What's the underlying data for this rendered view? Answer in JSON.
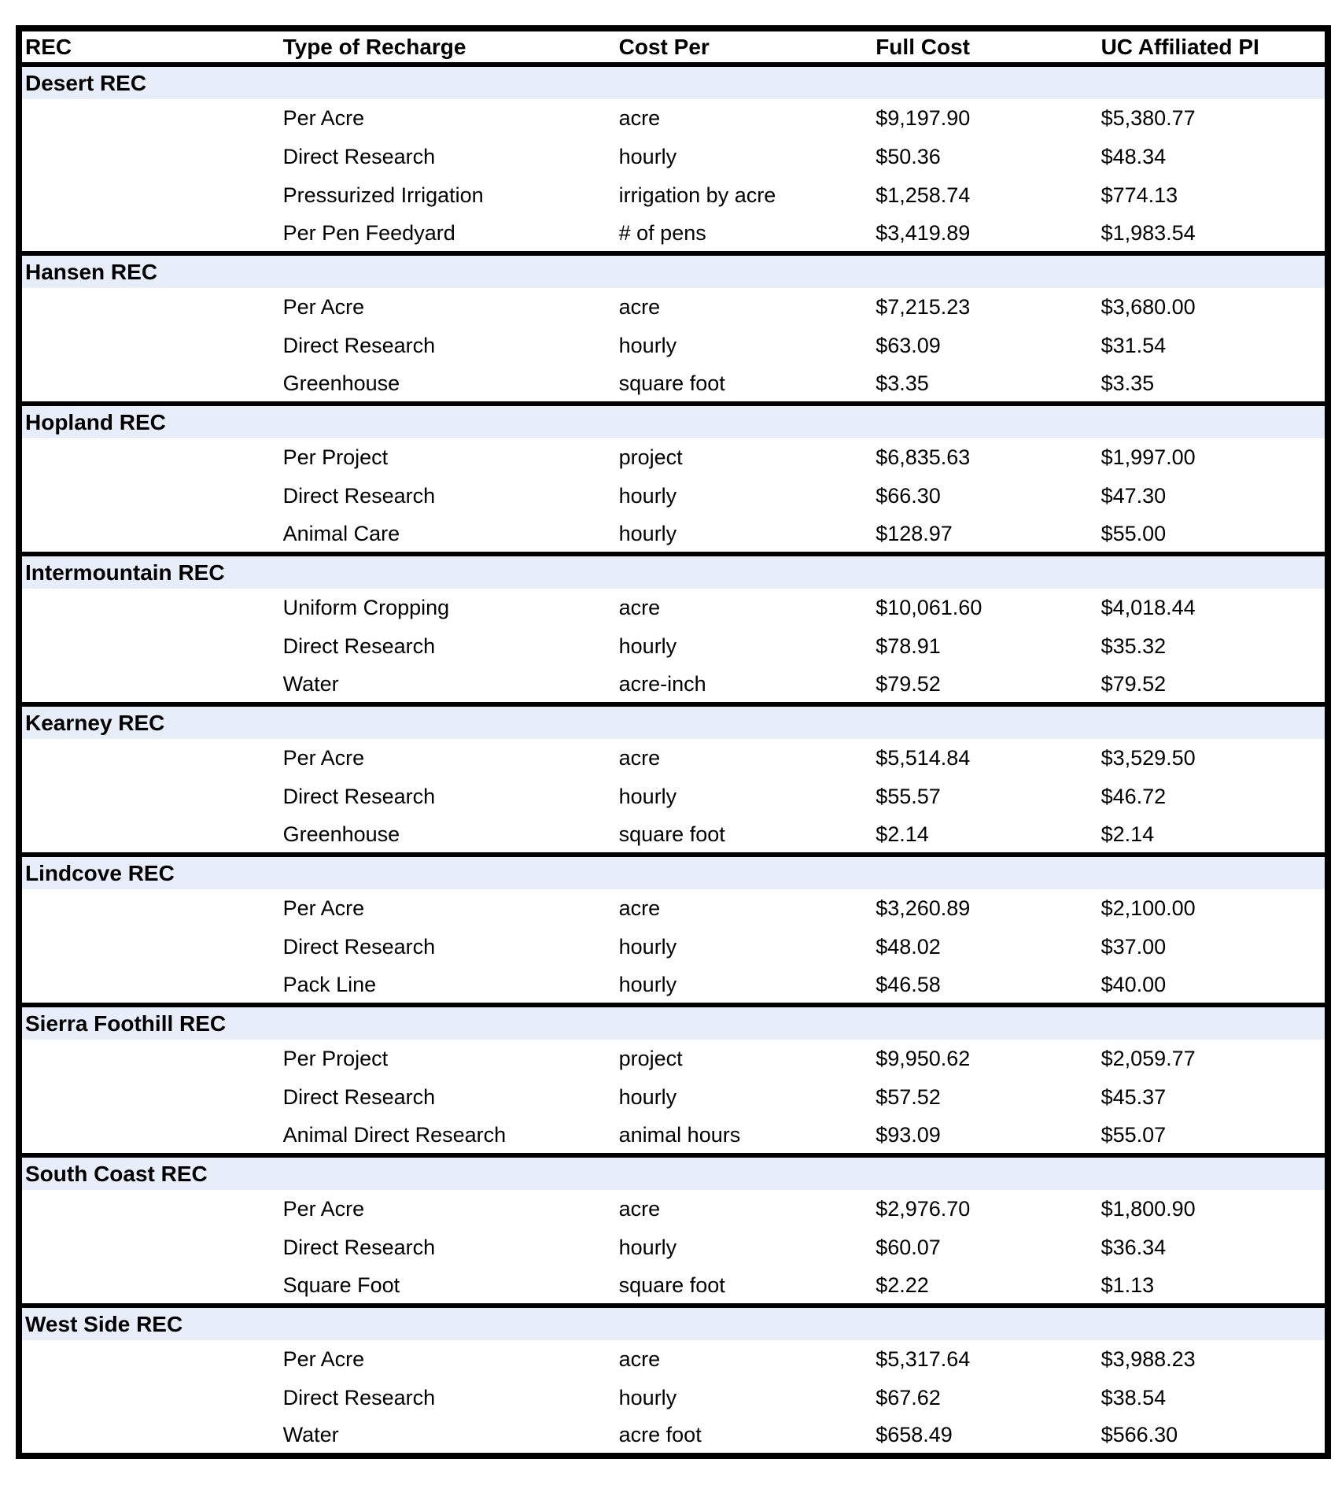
{
  "colors": {
    "section_row_bg": "#e7eefa",
    "border": "#000000",
    "text": "#000000",
    "page_bg": "#ffffff"
  },
  "table": {
    "columns": [
      "REC",
      "Type of Recharge",
      "Cost Per",
      "Full Cost",
      "UC Affiliated PI"
    ],
    "sections": [
      {
        "name": "Desert REC",
        "rows": [
          {
            "type": "Per Acre",
            "cost_per": "acre",
            "full_cost": "$9,197.90",
            "uc_pi": "$5,380.77"
          },
          {
            "type": "Direct Research",
            "cost_per": "hourly",
            "full_cost": "$50.36",
            "uc_pi": "$48.34"
          },
          {
            "type": "Pressurized Irrigation",
            "cost_per": "irrigation by acre",
            "full_cost": "$1,258.74",
            "uc_pi": "$774.13"
          },
          {
            "type": "Per Pen Feedyard",
            "cost_per": "# of pens",
            "full_cost": "$3,419.89",
            "uc_pi": "$1,983.54"
          }
        ]
      },
      {
        "name": "Hansen REC",
        "rows": [
          {
            "type": "Per Acre",
            "cost_per": "acre",
            "full_cost": "$7,215.23",
            "uc_pi": "$3,680.00"
          },
          {
            "type": "Direct Research",
            "cost_per": "hourly",
            "full_cost": "$63.09",
            "uc_pi": "$31.54"
          },
          {
            "type": "Greenhouse",
            "cost_per": "square foot",
            "full_cost": "$3.35",
            "uc_pi": "$3.35"
          }
        ]
      },
      {
        "name": "Hopland REC",
        "rows": [
          {
            "type": "Per Project",
            "cost_per": "project",
            "full_cost": "$6,835.63",
            "uc_pi": "$1,997.00"
          },
          {
            "type": "Direct Research",
            "cost_per": "hourly",
            "full_cost": "$66.30",
            "uc_pi": "$47.30"
          },
          {
            "type": "Animal Care",
            "cost_per": "hourly",
            "full_cost": "$128.97",
            "uc_pi": "$55.00"
          }
        ]
      },
      {
        "name": "Intermountain REC",
        "rows": [
          {
            "type": "Uniform Cropping",
            "cost_per": "acre",
            "full_cost": "$10,061.60",
            "uc_pi": "$4,018.44"
          },
          {
            "type": "Direct Research",
            "cost_per": "hourly",
            "full_cost": "$78.91",
            "uc_pi": "$35.32"
          },
          {
            "type": "Water",
            "cost_per": "acre-inch",
            "full_cost": "$79.52",
            "uc_pi": "$79.52"
          }
        ]
      },
      {
        "name": "Kearney REC",
        "rows": [
          {
            "type": "Per Acre",
            "cost_per": "acre",
            "full_cost": "$5,514.84",
            "uc_pi": "$3,529.50"
          },
          {
            "type": "Direct Research",
            "cost_per": "hourly",
            "full_cost": "$55.57",
            "uc_pi": "$46.72"
          },
          {
            "type": "Greenhouse",
            "cost_per": "square foot",
            "full_cost": "$2.14",
            "uc_pi": "$2.14"
          }
        ]
      },
      {
        "name": "Lindcove REC",
        "rows": [
          {
            "type": "Per Acre",
            "cost_per": "acre",
            "full_cost": "$3,260.89",
            "uc_pi": "$2,100.00"
          },
          {
            "type": "Direct Research",
            "cost_per": "hourly",
            "full_cost": "$48.02",
            "uc_pi": "$37.00"
          },
          {
            "type": "Pack Line",
            "cost_per": "hourly",
            "full_cost": "$46.58",
            "uc_pi": "$40.00"
          }
        ]
      },
      {
        "name": "Sierra Foothill REC",
        "rows": [
          {
            "type": "Per Project",
            "cost_per": "project",
            "full_cost": "$9,950.62",
            "uc_pi": "$2,059.77"
          },
          {
            "type": "Direct Research",
            "cost_per": "hourly",
            "full_cost": "$57.52",
            "uc_pi": "$45.37"
          },
          {
            "type": "Animal Direct Research",
            "cost_per": "animal hours",
            "full_cost": "$93.09",
            "uc_pi": "$55.07"
          }
        ]
      },
      {
        "name": "South Coast REC",
        "rows": [
          {
            "type": "Per Acre",
            "cost_per": "acre",
            "full_cost": "$2,976.70",
            "uc_pi": "$1,800.90"
          },
          {
            "type": "Direct Research",
            "cost_per": "hourly",
            "full_cost": "$60.07",
            "uc_pi": "$36.34"
          },
          {
            "type": "Square Foot",
            "cost_per": "square foot",
            "full_cost": "$2.22",
            "uc_pi": "$1.13"
          }
        ]
      },
      {
        "name": "West Side REC",
        "rows": [
          {
            "type": "Per Acre",
            "cost_per": "acre",
            "full_cost": "$5,317.64",
            "uc_pi": "$3,988.23"
          },
          {
            "type": "Direct Research",
            "cost_per": "hourly",
            "full_cost": "$67.62",
            "uc_pi": "$38.54"
          },
          {
            "type": "Water",
            "cost_per": "acre foot",
            "full_cost": "$658.49",
            "uc_pi": "$566.30"
          }
        ]
      }
    ]
  }
}
